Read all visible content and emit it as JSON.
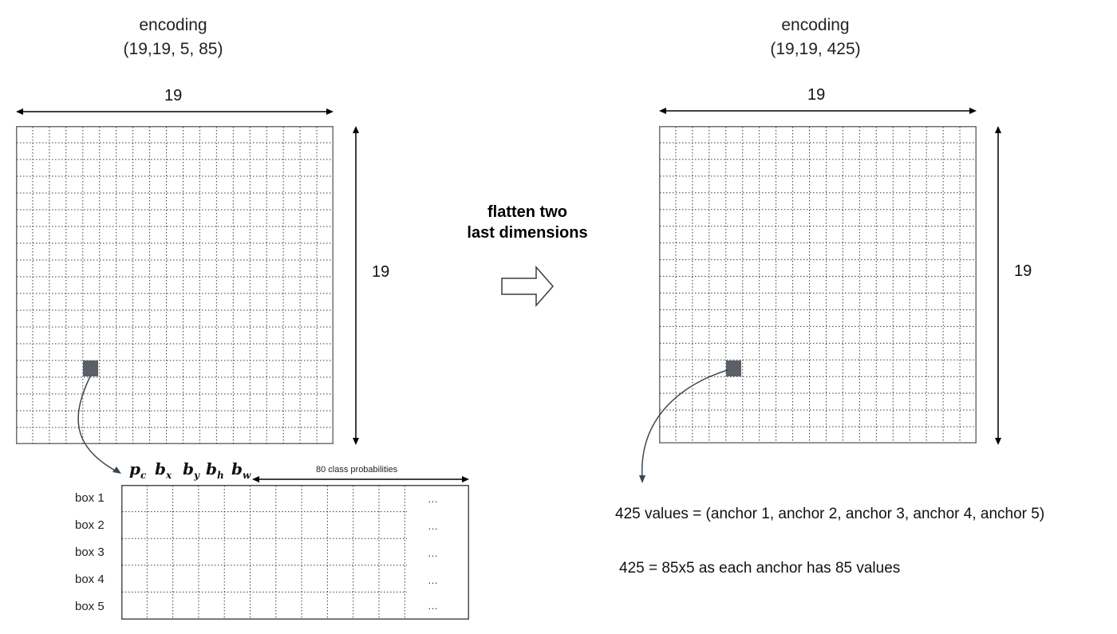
{
  "left": {
    "title_line1": "encoding",
    "title_line2": "(19,19, 5, 85)",
    "width_label": "19",
    "height_label": "19"
  },
  "right": {
    "title_line1": "encoding",
    "title_line2": "(19,19, 425)",
    "width_label": "19",
    "height_label": "19"
  },
  "transform": {
    "line1": "flatten two",
    "line2": "last dimensions"
  },
  "vector": {
    "labels": [
      {
        "main": "p",
        "sub": "c"
      },
      {
        "main": "b",
        "sub": "x"
      },
      {
        "main": "b",
        "sub": "y"
      },
      {
        "main": "b",
        "sub": "h"
      },
      {
        "main": "b",
        "sub": "w"
      }
    ],
    "class_label": "80 class probabilities",
    "rows": [
      "box 1",
      "box 2",
      "box 3",
      "box 4",
      "box 5"
    ],
    "ellipsis": "…"
  },
  "notes": {
    "line1": "425 values = (anchor 1, anchor 2, anchor 3, anchor 4, anchor 5)",
    "line2": "425 = 85x5 as each anchor has 85 values"
  }
}
